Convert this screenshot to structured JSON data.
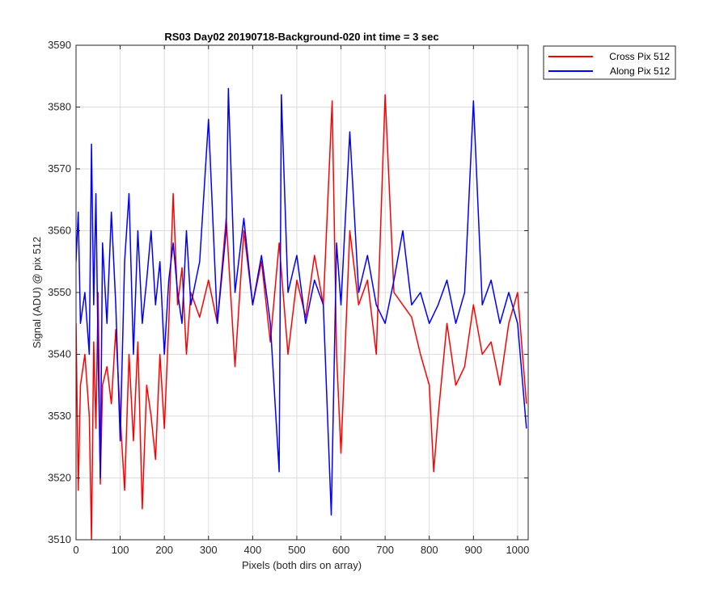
{
  "chart_data": {
    "type": "line",
    "title": "RS03 Day02 20190718-Background-020 int time = 3 sec",
    "xlabel": "Pixels (both dirs on array)",
    "ylabel": "Signal (ADU) @ pix 512",
    "xlim": [
      0,
      1024
    ],
    "ylim": [
      3510,
      3590
    ],
    "xticks": [
      0,
      100,
      200,
      300,
      400,
      500,
      600,
      700,
      800,
      900,
      1000
    ],
    "yticks": [
      3510,
      3520,
      3530,
      3540,
      3550,
      3560,
      3570,
      3580,
      3590
    ],
    "grid": true,
    "legend_position": "outside-top-right",
    "series": [
      {
        "name": "Cross Pix 512",
        "color": "#ff0000",
        "x": [
          0,
          5,
          10,
          20,
          30,
          35,
          40,
          45,
          50,
          55,
          60,
          70,
          80,
          90,
          100,
          110,
          120,
          130,
          140,
          150,
          160,
          170,
          180,
          190,
          200,
          210,
          220,
          230,
          240,
          250,
          260,
          280,
          300,
          320,
          340,
          360,
          380,
          400,
          420,
          440,
          460,
          480,
          500,
          520,
          540,
          560,
          580,
          590,
          600,
          620,
          640,
          660,
          680,
          700,
          720,
          740,
          760,
          780,
          800,
          810,
          820,
          840,
          860,
          880,
          900,
          920,
          940,
          960,
          980,
          1000,
          1020
        ],
        "y": [
          3545,
          3518,
          3535,
          3540,
          3530,
          3510,
          3542,
          3528,
          3550,
          3519,
          3535,
          3538,
          3532,
          3544,
          3530,
          3518,
          3540,
          3526,
          3542,
          3515,
          3535,
          3530,
          3523,
          3540,
          3528,
          3545,
          3566,
          3548,
          3554,
          3540,
          3550,
          3546,
          3552,
          3545,
          3562,
          3538,
          3560,
          3548,
          3555,
          3542,
          3558,
          3540,
          3552,
          3546,
          3556,
          3548,
          3581,
          3540,
          3524,
          3560,
          3548,
          3552,
          3540,
          3582,
          3550,
          3548,
          3546,
          3540,
          3535,
          3521,
          3530,
          3545,
          3535,
          3538,
          3548,
          3540,
          3542,
          3535,
          3545,
          3550,
          3532
        ]
      },
      {
        "name": "Along Pix 512",
        "color": "#0000ff",
        "x": [
          0,
          5,
          10,
          20,
          30,
          35,
          40,
          45,
          50,
          55,
          60,
          70,
          80,
          90,
          100,
          110,
          120,
          130,
          140,
          150,
          160,
          170,
          180,
          190,
          200,
          210,
          220,
          230,
          240,
          250,
          260,
          280,
          300,
          320,
          340,
          345,
          360,
          380,
          400,
          420,
          440,
          460,
          465,
          480,
          500,
          520,
          540,
          560,
          578,
          590,
          600,
          620,
          640,
          660,
          680,
          700,
          720,
          740,
          760,
          780,
          800,
          820,
          840,
          860,
          880,
          900,
          920,
          940,
          960,
          980,
          1000,
          1020
        ],
        "y": [
          3555,
          3563,
          3545,
          3550,
          3540,
          3574,
          3548,
          3566,
          3540,
          3520,
          3558,
          3545,
          3563,
          3548,
          3526,
          3555,
          3566,
          3540,
          3560,
          3545,
          3552,
          3560,
          3548,
          3555,
          3540,
          3552,
          3558,
          3550,
          3545,
          3560,
          3548,
          3555,
          3578,
          3545,
          3560,
          3583,
          3550,
          3562,
          3548,
          3556,
          3545,
          3521,
          3582,
          3550,
          3556,
          3545,
          3552,
          3548,
          3514,
          3558,
          3548,
          3576,
          3550,
          3556,
          3548,
          3545,
          3552,
          3560,
          3548,
          3550,
          3545,
          3548,
          3552,
          3545,
          3550,
          3581,
          3548,
          3552,
          3545,
          3550,
          3545,
          3528
        ]
      }
    ]
  }
}
